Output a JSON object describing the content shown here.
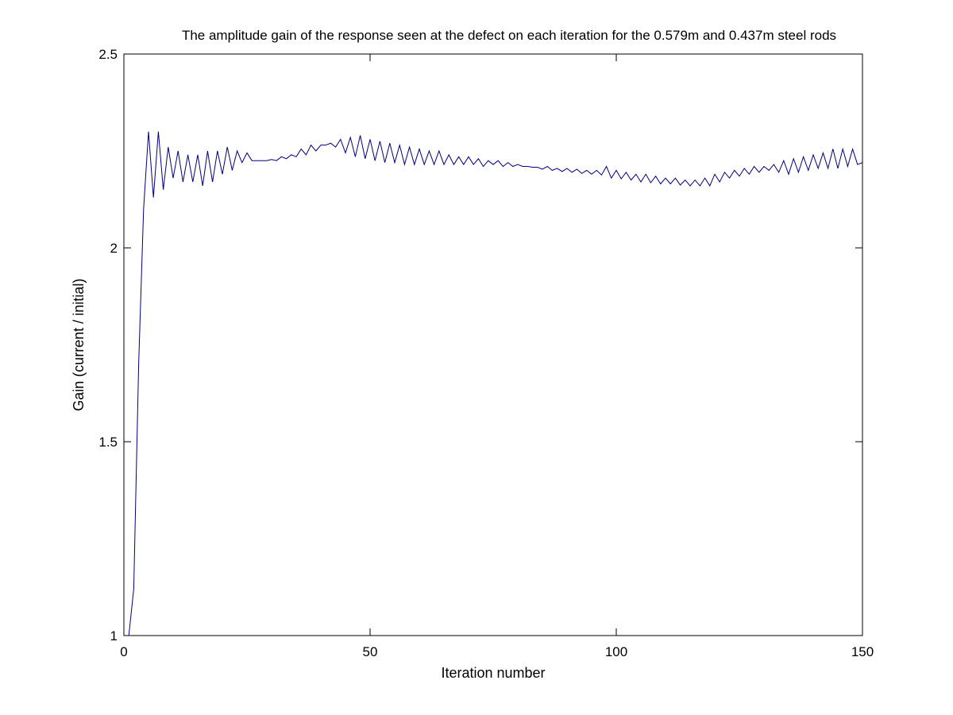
{
  "chart_data": {
    "type": "line",
    "title": "The amplitude gain of the response seen at the defect on each iteration for the 0.579m and 0.437m steel rods",
    "xlabel": "Iteration number",
    "ylabel": "Gain (current / initial)",
    "xlim": [
      0,
      150
    ],
    "ylim": [
      1,
      2.5
    ],
    "xticks": [
      0,
      50,
      100,
      150
    ],
    "xtick_labels": [
      "0",
      "50",
      "100",
      "150"
    ],
    "yticks": [
      1,
      1.5,
      2,
      2.5
    ],
    "ytick_labels": [
      "1",
      "1.5",
      "2",
      "2.5"
    ],
    "grid": false,
    "box": true,
    "line_color": "#00007f",
    "series": [
      {
        "x": [
          1,
          2,
          3,
          4,
          5,
          6,
          7,
          8,
          9,
          10,
          11,
          12,
          13,
          14,
          15,
          16,
          17,
          18,
          19,
          20,
          21,
          22,
          23,
          24,
          25,
          26,
          27,
          28,
          29,
          30,
          31,
          32,
          33,
          34,
          35,
          36,
          37,
          38,
          39,
          40,
          41,
          42,
          43,
          44,
          45,
          46,
          47,
          48,
          49,
          50,
          51,
          52,
          53,
          54,
          55,
          56,
          57,
          58,
          59,
          60,
          61,
          62,
          63,
          64,
          65,
          66,
          67,
          68,
          69,
          70,
          71,
          72,
          73,
          74,
          75,
          76,
          77,
          78,
          79,
          80,
          81,
          82,
          83,
          84,
          85,
          86,
          87,
          88,
          89,
          90,
          91,
          92,
          93,
          94,
          95,
          96,
          97,
          98,
          99,
          100,
          101,
          102,
          103,
          104,
          105,
          106,
          107,
          108,
          109,
          110,
          111,
          112,
          113,
          114,
          115,
          116,
          117,
          118,
          119,
          120,
          121,
          122,
          123,
          124,
          125,
          126,
          127,
          128,
          129,
          130,
          131,
          132,
          133,
          134,
          135,
          136,
          137,
          138,
          139,
          140,
          141,
          142,
          143,
          144,
          145,
          146,
          147,
          148,
          149,
          150
        ],
        "y": [
          1.0,
          1.12,
          1.7,
          2.1,
          2.3,
          2.13,
          2.3,
          2.15,
          2.26,
          2.18,
          2.25,
          2.17,
          2.24,
          2.17,
          2.24,
          2.16,
          2.25,
          2.17,
          2.25,
          2.19,
          2.26,
          2.2,
          2.25,
          2.22,
          2.245,
          2.225,
          2.225,
          2.225,
          2.225,
          2.228,
          2.225,
          2.235,
          2.23,
          2.24,
          2.235,
          2.255,
          2.24,
          2.265,
          2.25,
          2.265,
          2.265,
          2.27,
          2.26,
          2.28,
          2.245,
          2.285,
          2.235,
          2.29,
          2.23,
          2.28,
          2.225,
          2.275,
          2.22,
          2.27,
          2.22,
          2.265,
          2.215,
          2.26,
          2.215,
          2.255,
          2.215,
          2.25,
          2.215,
          2.25,
          2.215,
          2.24,
          2.215,
          2.235,
          2.215,
          2.235,
          2.215,
          2.23,
          2.21,
          2.225,
          2.215,
          2.225,
          2.21,
          2.22,
          2.21,
          2.215,
          2.21,
          2.21,
          2.208,
          2.208,
          2.203,
          2.21,
          2.2,
          2.205,
          2.197,
          2.205,
          2.195,
          2.203,
          2.192,
          2.2,
          2.19,
          2.2,
          2.188,
          2.21,
          2.18,
          2.2,
          2.178,
          2.195,
          2.175,
          2.19,
          2.17,
          2.19,
          2.168,
          2.185,
          2.165,
          2.18,
          2.165,
          2.18,
          2.162,
          2.175,
          2.16,
          2.175,
          2.16,
          2.18,
          2.16,
          2.19,
          2.17,
          2.195,
          2.18,
          2.2,
          2.185,
          2.205,
          2.19,
          2.21,
          2.195,
          2.21,
          2.2,
          2.215,
          2.195,
          2.225,
          2.19,
          2.23,
          2.195,
          2.235,
          2.2,
          2.24,
          2.205,
          2.245,
          2.205,
          2.255,
          2.205,
          2.255,
          2.21,
          2.255,
          2.215,
          2.22
        ]
      }
    ]
  }
}
